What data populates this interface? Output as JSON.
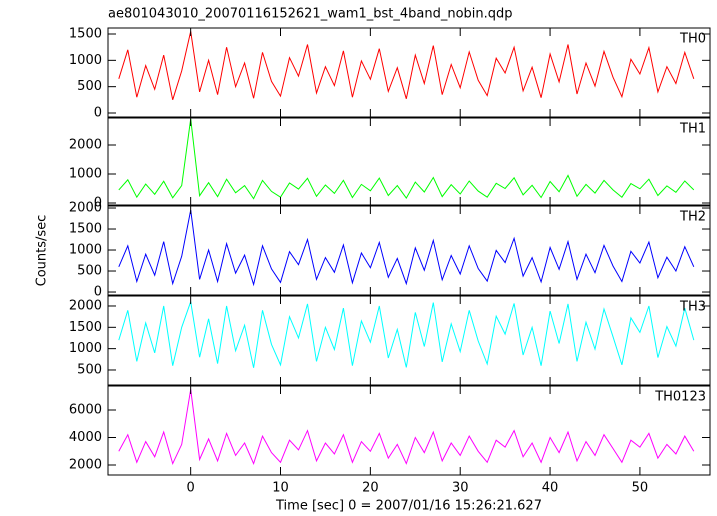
{
  "chart_data": [
    {
      "type": "line",
      "title": "ae801043010_20070116152621_wam1_bst_4band_nobin.qdp",
      "label": "TH0",
      "x": [
        -8,
        -7,
        -6,
        -5,
        -4,
        -3,
        -2,
        -1,
        0,
        1,
        2,
        3,
        4,
        5,
        6,
        7,
        8,
        9,
        10,
        11,
        12,
        13,
        14,
        15,
        16,
        17,
        18,
        19,
        20,
        21,
        22,
        23,
        24,
        25,
        26,
        27,
        28,
        29,
        30,
        31,
        32,
        33,
        34,
        35,
        36,
        37,
        38,
        39,
        40,
        41,
        42,
        43,
        44,
        45,
        46,
        47,
        48,
        49,
        50,
        51,
        52,
        53,
        54,
        55,
        56
      ],
      "series": [
        {
          "name": "TH0",
          "color": "#ff0000",
          "values": [
            650,
            1200,
            300,
            900,
            450,
            1100,
            250,
            800,
            1550,
            400,
            1000,
            350,
            1250,
            500,
            950,
            280,
            1150,
            600,
            320,
            1050,
            700,
            1300,
            380,
            880,
            520,
            1180,
            300,
            990,
            640,
            1220,
            410,
            860,
            270,
            1100,
            560,
            1280,
            350,
            920,
            480,
            1160,
            620,
            330,
            1040,
            760,
            1250,
            420,
            870,
            290,
            1120,
            590,
            1300,
            360,
            950,
            510,
            1170,
            680,
            310,
            1020,
            740,
            1240,
            400,
            880,
            560,
            1150,
            650
          ]
        }
      ],
      "xlim": [
        -9.2,
        57.8
      ],
      "xticks": [
        0,
        10,
        20,
        30,
        40,
        50
      ],
      "ylim": [
        -76,
        1614
      ],
      "yticks": [
        0,
        500,
        1000,
        1500
      ]
    },
    {
      "type": "line",
      "label": "TH1",
      "x": [
        -8,
        -7,
        -6,
        -5,
        -4,
        -3,
        -2,
        -1,
        0,
        1,
        2,
        3,
        4,
        5,
        6,
        7,
        8,
        9,
        10,
        11,
        12,
        13,
        14,
        15,
        16,
        17,
        18,
        19,
        20,
        21,
        22,
        23,
        24,
        25,
        26,
        27,
        28,
        29,
        30,
        31,
        32,
        33,
        34,
        35,
        36,
        37,
        38,
        39,
        40,
        41,
        42,
        43,
        44,
        45,
        46,
        47,
        48,
        49,
        50,
        51,
        52,
        53,
        54,
        55,
        56
      ],
      "series": [
        {
          "name": "TH1",
          "color": "#00ff00",
          "values": [
            450,
            800,
            200,
            650,
            300,
            750,
            180,
            600,
            2900,
            250,
            700,
            220,
            820,
            350,
            600,
            150,
            780,
            400,
            200,
            690,
            480,
            850,
            230,
            620,
            330,
            780,
            190,
            640,
            420,
            860,
            260,
            600,
            170,
            720,
            380,
            880,
            220,
            630,
            310,
            760,
            410,
            200,
            680,
            500,
            870,
            280,
            610,
            190,
            740,
            390,
            950,
            230,
            640,
            340,
            780,
            450,
            200,
            670,
            490,
            820,
            260,
            590,
            370,
            760,
            450
          ]
        }
      ],
      "xlim": [
        -9.2,
        57.8
      ],
      "xticks": [
        0,
        10,
        20,
        30,
        40,
        50
      ],
      "ylim": [
        -69,
        2931
      ],
      "yticks": [
        0,
        1000,
        2000
      ]
    },
    {
      "type": "line",
      "label": "TH2",
      "ylabel": "Counts/sec",
      "x": [
        -8,
        -7,
        -6,
        -5,
        -4,
        -3,
        -2,
        -1,
        0,
        1,
        2,
        3,
        4,
        5,
        6,
        7,
        8,
        9,
        10,
        11,
        12,
        13,
        14,
        15,
        16,
        17,
        18,
        19,
        20,
        21,
        22,
        23,
        24,
        25,
        26,
        27,
        28,
        29,
        30,
        31,
        32,
        33,
        34,
        35,
        36,
        37,
        38,
        39,
        40,
        41,
        42,
        43,
        44,
        45,
        46,
        47,
        48,
        49,
        50,
        51,
        52,
        53,
        54,
        55,
        56
      ],
      "series": [
        {
          "name": "TH2",
          "color": "#0000ff",
          "values": [
            600,
            1100,
            250,
            900,
            400,
            1200,
            200,
            850,
            1950,
            300,
            1000,
            250,
            1150,
            450,
            880,
            180,
            1100,
            550,
            230,
            960,
            650,
            1250,
            300,
            820,
            470,
            1120,
            220,
            930,
            580,
            1180,
            350,
            800,
            200,
            1050,
            520,
            1230,
            290,
            870,
            430,
            1100,
            560,
            260,
            990,
            700,
            1280,
            380,
            820,
            240,
            1060,
            540,
            1200,
            300,
            900,
            460,
            1110,
            620,
            250,
            970,
            690,
            1190,
            340,
            830,
            500,
            1080,
            600
          ]
        }
      ],
      "xlim": [
        -9.2,
        57.8
      ],
      "xticks": [
        0,
        10,
        20,
        30,
        40,
        50
      ],
      "ylim": [
        -71,
        2048
      ],
      "yticks": [
        0,
        500,
        1000,
        1500,
        2000
      ]
    },
    {
      "type": "line",
      "label": "TH3",
      "x": [
        -8,
        -7,
        -6,
        -5,
        -4,
        -3,
        -2,
        -1,
        0,
        1,
        2,
        3,
        4,
        5,
        6,
        7,
        8,
        9,
        10,
        11,
        12,
        13,
        14,
        15,
        16,
        17,
        18,
        19,
        20,
        21,
        22,
        23,
        24,
        25,
        26,
        27,
        28,
        29,
        30,
        31,
        32,
        33,
        34,
        35,
        36,
        37,
        38,
        39,
        40,
        41,
        42,
        43,
        44,
        45,
        46,
        47,
        48,
        49,
        50,
        51,
        52,
        53,
        54,
        55,
        56
      ],
      "series": [
        {
          "name": "TH3",
          "color": "#00ffff",
          "values": [
            1200,
            1900,
            700,
            1600,
            900,
            2000,
            600,
            1500,
            2100,
            800,
            1700,
            650,
            2000,
            950,
            1550,
            550,
            1900,
            1100,
            620,
            1750,
            1250,
            2050,
            700,
            1500,
            980,
            1950,
            600,
            1650,
            1150,
            2000,
            780,
            1450,
            560,
            1850,
            1050,
            2080,
            690,
            1580,
            930,
            1900,
            1180,
            640,
            1760,
            1340,
            2060,
            850,
            1500,
            600,
            1880,
            1120,
            2050,
            700,
            1620,
            990,
            1930,
            1280,
            620,
            1720,
            1380,
            2000,
            790,
            1520,
            1060,
            1950,
            1200
          ]
        }
      ],
      "xlim": [
        -9.2,
        57.8
      ],
      "xticks": [
        0,
        10,
        20,
        30,
        40,
        50
      ],
      "ylim": [
        148,
        2234
      ],
      "yticks": [
        500,
        1000,
        1500,
        2000
      ]
    },
    {
      "type": "line",
      "label": "TH0123",
      "xlabel": "Time [sec] 0 = 2007/01/16 15:26:21.627",
      "x": [
        -8,
        -7,
        -6,
        -5,
        -4,
        -3,
        -2,
        -1,
        0,
        1,
        2,
        3,
        4,
        5,
        6,
        7,
        8,
        9,
        10,
        11,
        12,
        13,
        14,
        15,
        16,
        17,
        18,
        19,
        20,
        21,
        22,
        23,
        24,
        25,
        26,
        27,
        28,
        29,
        30,
        31,
        32,
        33,
        34,
        35,
        36,
        37,
        38,
        39,
        40,
        41,
        42,
        43,
        44,
        45,
        46,
        47,
        48,
        49,
        50,
        51,
        52,
        53,
        54,
        55,
        56
      ],
      "series": [
        {
          "name": "TH0123",
          "color": "#ff00ff",
          "values": [
            3000,
            4200,
            2200,
            3700,
            2600,
            4400,
            2100,
            3500,
            7500,
            2400,
            3900,
            2300,
            4300,
            2700,
            3600,
            2100,
            4100,
            2900,
            2200,
            3800,
            3100,
            4500,
            2300,
            3600,
            2800,
            4200,
            2200,
            3700,
            3000,
            4300,
            2500,
            3500,
            2100,
            4000,
            2900,
            4400,
            2300,
            3600,
            2700,
            4100,
            3000,
            2200,
            3800,
            3300,
            4500,
            2600,
            3600,
            2200,
            4000,
            2900,
            4400,
            2300,
            3700,
            2700,
            4200,
            3200,
            2200,
            3800,
            3300,
            4300,
            2500,
            3500,
            2800,
            4100,
            3000
          ]
        }
      ],
      "xlim": [
        -9.2,
        57.8
      ],
      "xticks": [
        0,
        10,
        20,
        30,
        40,
        50
      ],
      "ylim": [
        1273,
        7745
      ],
      "yticks": [
        2000,
        4000,
        6000
      ]
    }
  ]
}
